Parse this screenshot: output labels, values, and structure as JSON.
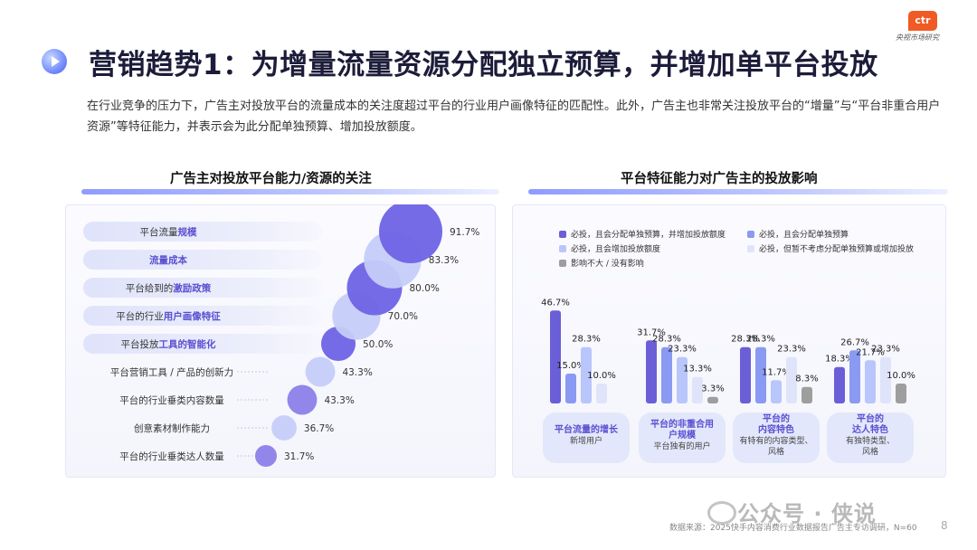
{
  "header": {
    "title": "营销趋势1：为增量流量资源分配独立预算，并增加单平台投放",
    "logo_text": "ctr",
    "logo_sub": "央视市场研究"
  },
  "intro": "在行业竞争的压力下，广告主对投放平台的流量成本的关注度超过平台的行业用户画像特征的匹配性。此外，广告主也非常关注投放平台的“增量”与“平台非重合用户资源”等特征能力，并表示会为此分配单独预算、增加投放额度。",
  "left_section_title": "广告主对投放平台能力/资源的关注",
  "right_section_title": "平台特征能力对广告主的投放影响",
  "colors": {
    "bubble_dark": "#6f63e6",
    "bubble_light": "#c5cdf9",
    "bar_dark": "#6a5fd6",
    "bar_blue": "#8a9af2",
    "bar_light": "#b9c6fb",
    "bar_pale": "#dfe4fb",
    "bar_gray": "#9e9e9e",
    "highlight": "#5a4fd0"
  },
  "chart_data": [
    {
      "type": "bubble",
      "categories": [
        "平台流量规模",
        "流量成本",
        "平台给到的激励政策",
        "平台的行业用户画像特征",
        "平台投放工具的智能化",
        "平台营销工具 / 产品的创新力",
        "平台的行业垂类内容数量",
        "创意素材制作能力",
        "平台的行业垂类达人数量"
      ],
      "label_parts": [
        [
          "平台流量",
          "规模"
        ],
        [
          "",
          "流量成本"
        ],
        [
          "平台给到的",
          "激励政策"
        ],
        [
          "平台的行业",
          "用户画像特征"
        ],
        [
          "平台投放",
          "工具的智能化"
        ],
        [
          "平台营销工具 / 产品的创新力",
          ""
        ],
        [
          "平台的行业垂类内容数量",
          ""
        ],
        [
          "创意素材制作能力",
          ""
        ],
        [
          "平台的行业垂类达人数量",
          ""
        ]
      ],
      "highlighted": [
        true,
        true,
        true,
        true,
        true,
        false,
        false,
        false,
        false
      ],
      "values": [
        91.7,
        83.3,
        80.0,
        70.0,
        50.0,
        43.3,
        43.3,
        36.7,
        31.7
      ],
      "value_labels": [
        "91.7%",
        "83.3%",
        "80.0%",
        "70.0%",
        "50.0%",
        "43.3%",
        "43.3%",
        "36.7%",
        "31.7%"
      ]
    },
    {
      "type": "bar",
      "categories": [
        "平台流量的增长",
        "平台的非重合用户规模",
        "平台的内容特色",
        "平台的达人特色"
      ],
      "category_titles": [
        [
          "平台流量的增长"
        ],
        [
          "平台的非重合用",
          "户规模"
        ],
        [
          "平台的",
          "内容特色"
        ],
        [
          "平台的",
          "达人特色"
        ]
      ],
      "category_subtitles": [
        [
          "新增用户"
        ],
        [
          "平台独有的用户"
        ],
        [
          "有特有的内容类型、",
          "风格"
        ],
        [
          "有独特类型、",
          "风格"
        ]
      ],
      "legend": [
        "必投，且会分配单独预算，并增加投放额度",
        "必投，且会分配单独预算",
        "必投，且会增加投放额度",
        "必投，但暂不考虑分配单独预算或增加投放",
        "影响不大 / 没有影响"
      ],
      "series": [
        {
          "name": "必投，且会分配单独预算，并增加投放额度",
          "values": [
            46.7,
            31.7,
            28.3,
            18.3
          ]
        },
        {
          "name": "必投，且会分配单独预算",
          "values": [
            15.0,
            28.3,
            28.3,
            26.7
          ]
        },
        {
          "name": "必投，且会增加投放额度",
          "values": [
            28.3,
            23.3,
            11.7,
            21.7
          ]
        },
        {
          "name": "必投，但暂不考虑分配单独预算或增加投放",
          "values": [
            10.0,
            13.3,
            23.3,
            23.3
          ]
        },
        {
          "name": "影响不大 / 没有影响",
          "values": [
            0,
            3.3,
            8.3,
            10.0
          ]
        }
      ],
      "value_labels": [
        [
          "46.7%",
          "15.0%",
          "28.3%",
          "10.0%",
          ""
        ],
        [
          "31.7%",
          "28.3%",
          "23.3%",
          "13.3%",
          "3.3%"
        ],
        [
          "28.3%",
          "28.3%",
          "11.7%",
          "23.3%",
          "8.3%"
        ],
        [
          "18.3%",
          "26.7%",
          "21.7%",
          "23.3%",
          "10.0%"
        ]
      ],
      "ylim": [
        0,
        50
      ]
    }
  ],
  "footnote": "数据来源：2025快手内容消费行业数据报告广告主专访调研，N=60",
  "watermark": "公众号 · 侠说",
  "page_number": "8"
}
